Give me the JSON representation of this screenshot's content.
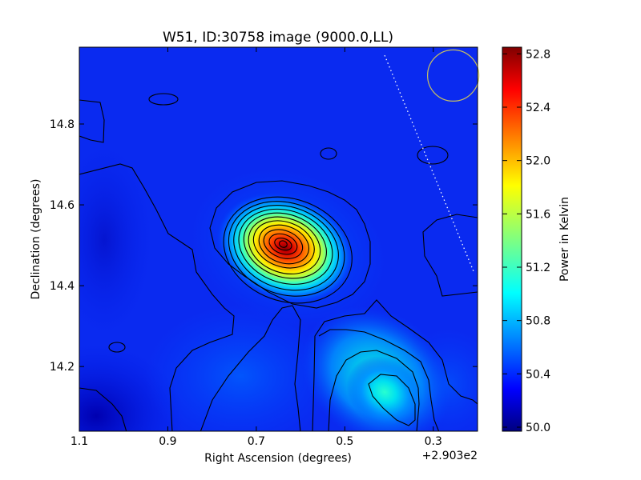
{
  "chart_data": {
    "type": "heatmap",
    "title": "W51, ID:30758 image (9000.0,LL)",
    "xlabel": "Right Ascension (degrees)",
    "ylabel": "Declination (degrees)",
    "x_offset_label": "+2.903e2",
    "xlim": [
      1.1,
      0.2
    ],
    "ylim": [
      14.04,
      14.99
    ],
    "x_ticks": [
      1.1,
      0.9,
      0.7,
      0.5,
      0.3
    ],
    "x_tick_labels": [
      "1.1",
      "0.9",
      "0.7",
      "0.5",
      "0.3"
    ],
    "y_ticks": [
      14.2,
      14.4,
      14.6,
      14.8
    ],
    "y_tick_labels": [
      "14.2",
      "14.4",
      "14.6",
      "14.8"
    ],
    "colorbar": {
      "label": "Power in Kelvin",
      "range": [
        49.97,
        52.85
      ],
      "ticks": [
        50.0,
        50.4,
        50.8,
        51.2,
        51.6,
        52.0,
        52.4,
        52.8
      ],
      "tick_labels": [
        "50.0",
        "50.4",
        "50.8",
        "51.2",
        "51.6",
        "52.0",
        "52.4",
        "52.8"
      ],
      "colormap": "jet"
    },
    "background_level": 50.3,
    "peaks": [
      {
        "ra": 0.61,
        "dec": 14.495,
        "value": 52.85,
        "sigma_ra": 0.075,
        "sigma_dec": 0.055
      },
      {
        "ra": 0.34,
        "dec": 14.14,
        "value": 51.05,
        "sigma_ra": 0.06,
        "sigma_dec": 0.07
      },
      {
        "ra": 0.42,
        "dec": 14.22,
        "value": 50.7,
        "sigma_ra": 0.06,
        "sigma_dec": 0.06
      }
    ],
    "beam": {
      "ra": 0.255,
      "dec": 14.92,
      "radius_deg": 0.058,
      "color": "#c8c060"
    },
    "dotted_line": {
      "from": {
        "ra": 0.41,
        "dec": 14.97
      },
      "to": {
        "ra": 0.207,
        "dec": 14.43
      }
    },
    "grid": false,
    "legend": "none"
  }
}
